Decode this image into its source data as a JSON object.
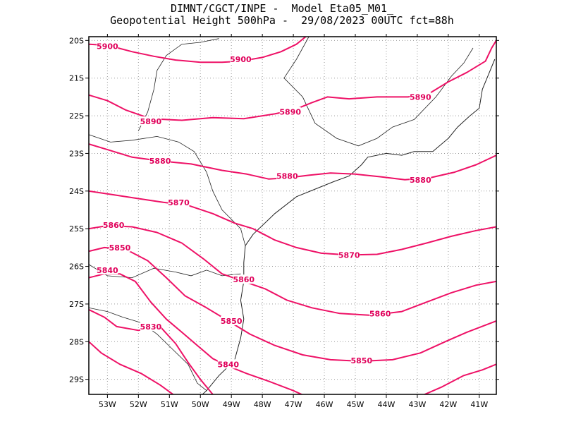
{
  "chart_data": {
    "type": "line",
    "title_line1": "DIMNT/CGCT/INPE -  Model Eta05_M01_",
    "title_line2": "Geopotential Height 500hPa -  29/08/2023 00UTC fct=88h",
    "x_axis": {
      "range": [
        -53.6,
        -40.45
      ],
      "ticks": [
        -53,
        -52,
        -51,
        -50,
        -49,
        -48,
        -47,
        -46,
        -45,
        -44,
        -43,
        -42,
        -41
      ],
      "tick_labels": [
        "53W",
        "52W",
        "51W",
        "50W",
        "49W",
        "48W",
        "47W",
        "46W",
        "45W",
        "44W",
        "43W",
        "42W",
        "41W"
      ]
    },
    "y_axis": {
      "range": [
        -29.4,
        -19.9
      ],
      "ticks": [
        -20,
        -21,
        -22,
        -23,
        -24,
        -25,
        -26,
        -27,
        -28,
        -29
      ],
      "tick_labels": [
        "20S",
        "21S",
        "22S",
        "23S",
        "24S",
        "25S",
        "26S",
        "27S",
        "28S",
        "29S"
      ]
    },
    "grid": "dotted",
    "colors": {
      "contour": "#ee1166",
      "label": "#e0005a",
      "coast": "#222222",
      "grid": "#999999"
    },
    "series": [
      {
        "name": "5900",
        "label_positions": [
          [
            -53.0,
            -20.15
          ],
          [
            -48.7,
            -20.5
          ]
        ],
        "points": [
          [
            -53.6,
            -20.1
          ],
          [
            -53.2,
            -20.12
          ],
          [
            -52.8,
            -20.17
          ],
          [
            -52.2,
            -20.3
          ],
          [
            -51.5,
            -20.42
          ],
          [
            -50.8,
            -20.52
          ],
          [
            -50.0,
            -20.58
          ],
          [
            -49.3,
            -20.58
          ],
          [
            -48.7,
            -20.55
          ],
          [
            -48.0,
            -20.45
          ],
          [
            -47.4,
            -20.3
          ],
          [
            -46.9,
            -20.1
          ],
          [
            -46.6,
            -19.9
          ]
        ]
      },
      {
        "name": "5890",
        "label_positions": [
          [
            -51.6,
            -22.15
          ],
          [
            -47.1,
            -21.9
          ],
          [
            -42.9,
            -21.5
          ]
        ],
        "points": [
          [
            -53.6,
            -21.45
          ],
          [
            -53.0,
            -21.6
          ],
          [
            -52.4,
            -21.85
          ],
          [
            -51.6,
            -22.08
          ],
          [
            -50.6,
            -22.12
          ],
          [
            -49.6,
            -22.05
          ],
          [
            -48.6,
            -22.08
          ],
          [
            -47.6,
            -21.95
          ],
          [
            -47.0,
            -21.85
          ],
          [
            -46.4,
            -21.65
          ],
          [
            -45.9,
            -21.5
          ],
          [
            -45.2,
            -21.55
          ],
          [
            -44.3,
            -21.5
          ],
          [
            -43.3,
            -21.5
          ],
          [
            -42.6,
            -21.4
          ],
          [
            -42.0,
            -21.1
          ],
          [
            -41.4,
            -20.85
          ],
          [
            -40.8,
            -20.55
          ],
          [
            -40.6,
            -20.2
          ],
          [
            -40.45,
            -20.0
          ]
        ]
      },
      {
        "name": "5880",
        "label_positions": [
          [
            -51.3,
            -23.2
          ],
          [
            -47.2,
            -23.6
          ],
          [
            -42.9,
            -23.7
          ]
        ],
        "points": [
          [
            -53.6,
            -22.75
          ],
          [
            -53.0,
            -22.9
          ],
          [
            -52.2,
            -23.1
          ],
          [
            -51.3,
            -23.2
          ],
          [
            -50.3,
            -23.28
          ],
          [
            -49.3,
            -23.45
          ],
          [
            -48.5,
            -23.55
          ],
          [
            -47.8,
            -23.68
          ],
          [
            -47.2,
            -23.65
          ],
          [
            -46.5,
            -23.58
          ],
          [
            -45.8,
            -23.52
          ],
          [
            -45.0,
            -23.55
          ],
          [
            -44.2,
            -23.62
          ],
          [
            -43.4,
            -23.7
          ],
          [
            -42.6,
            -23.65
          ],
          [
            -41.8,
            -23.5
          ],
          [
            -41.1,
            -23.3
          ],
          [
            -40.45,
            -23.05
          ]
        ]
      },
      {
        "name": "5870",
        "label_positions": [
          [
            -50.7,
            -24.3
          ],
          [
            -45.2,
            -25.7
          ]
        ],
        "points": [
          [
            -53.6,
            -24.0
          ],
          [
            -52.8,
            -24.1
          ],
          [
            -52.0,
            -24.2
          ],
          [
            -51.2,
            -24.3
          ],
          [
            -50.4,
            -24.38
          ],
          [
            -49.6,
            -24.6
          ],
          [
            -48.9,
            -24.85
          ],
          [
            -48.3,
            -25.0
          ],
          [
            -47.6,
            -25.3
          ],
          [
            -46.9,
            -25.5
          ],
          [
            -46.1,
            -25.65
          ],
          [
            -45.2,
            -25.7
          ],
          [
            -44.3,
            -25.68
          ],
          [
            -43.5,
            -25.55
          ],
          [
            -42.7,
            -25.38
          ],
          [
            -41.9,
            -25.2
          ],
          [
            -41.1,
            -25.05
          ],
          [
            -40.45,
            -24.95
          ]
        ]
      },
      {
        "name": "5860",
        "label_positions": [
          [
            -52.8,
            -24.9
          ],
          [
            -48.6,
            -26.35
          ],
          [
            -44.2,
            -27.25
          ]
        ],
        "points": [
          [
            -53.6,
            -25.0
          ],
          [
            -53.0,
            -24.92
          ],
          [
            -52.2,
            -24.95
          ],
          [
            -51.4,
            -25.1
          ],
          [
            -50.6,
            -25.38
          ],
          [
            -49.9,
            -25.8
          ],
          [
            -49.3,
            -26.2
          ],
          [
            -48.6,
            -26.4
          ],
          [
            -47.9,
            -26.6
          ],
          [
            -47.2,
            -26.9
          ],
          [
            -46.4,
            -27.1
          ],
          [
            -45.5,
            -27.25
          ],
          [
            -44.5,
            -27.3
          ],
          [
            -43.5,
            -27.2
          ],
          [
            -42.7,
            -26.95
          ],
          [
            -41.9,
            -26.7
          ],
          [
            -41.1,
            -26.5
          ],
          [
            -40.45,
            -26.4
          ]
        ]
      },
      {
        "name": "5850",
        "label_positions": [
          [
            -52.6,
            -25.5
          ],
          [
            -49.0,
            -27.45
          ],
          [
            -44.8,
            -28.5
          ]
        ],
        "points": [
          [
            -53.6,
            -25.6
          ],
          [
            -53.1,
            -25.5
          ],
          [
            -52.4,
            -25.55
          ],
          [
            -51.7,
            -25.85
          ],
          [
            -51.1,
            -26.3
          ],
          [
            -50.5,
            -26.78
          ],
          [
            -49.8,
            -27.1
          ],
          [
            -49.1,
            -27.45
          ],
          [
            -48.4,
            -27.8
          ],
          [
            -47.6,
            -28.1
          ],
          [
            -46.7,
            -28.35
          ],
          [
            -45.8,
            -28.48
          ],
          [
            -44.8,
            -28.52
          ],
          [
            -43.8,
            -28.48
          ],
          [
            -42.9,
            -28.3
          ],
          [
            -42.1,
            -28.0
          ],
          [
            -41.4,
            -27.75
          ],
          [
            -40.45,
            -27.45
          ]
        ]
      },
      {
        "name": "5840",
        "label_positions": [
          [
            -53.0,
            -26.1
          ],
          [
            -49.1,
            -28.6
          ]
        ],
        "points": [
          [
            -53.6,
            -26.3
          ],
          [
            -53.1,
            -26.2
          ],
          [
            -52.6,
            -26.2
          ],
          [
            -52.1,
            -26.4
          ],
          [
            -51.6,
            -26.95
          ],
          [
            -51.1,
            -27.4
          ],
          [
            -50.6,
            -27.75
          ],
          [
            -50.1,
            -28.1
          ],
          [
            -49.6,
            -28.45
          ],
          [
            -49.1,
            -28.65
          ],
          [
            -48.5,
            -28.85
          ],
          [
            -47.8,
            -29.05
          ],
          [
            -47.0,
            -29.3
          ],
          [
            -46.6,
            -29.45
          ]
        ]
      },
      {
        "name": "5840b",
        "label_positions": [],
        "points": [
          [
            -42.9,
            -29.45
          ],
          [
            -42.2,
            -29.2
          ],
          [
            -41.5,
            -28.9
          ],
          [
            -40.9,
            -28.75
          ],
          [
            -40.45,
            -28.6
          ]
        ]
      },
      {
        "name": "5830",
        "label_positions": [
          [
            -51.6,
            -27.6
          ]
        ],
        "points": [
          [
            -53.6,
            -27.15
          ],
          [
            -53.1,
            -27.35
          ],
          [
            -52.7,
            -27.6
          ],
          [
            -52.0,
            -27.7
          ],
          [
            -51.3,
            -27.6
          ],
          [
            -50.8,
            -28.05
          ],
          [
            -50.4,
            -28.55
          ],
          [
            -50.0,
            -29.0
          ],
          [
            -49.6,
            -29.4
          ]
        ]
      },
      {
        "name": "5830b",
        "label_positions": [],
        "points": [
          [
            -53.6,
            -28.0
          ],
          [
            -53.2,
            -28.3
          ],
          [
            -52.6,
            -28.6
          ],
          [
            -51.9,
            -28.85
          ],
          [
            -51.3,
            -29.15
          ],
          [
            -50.8,
            -29.45
          ]
        ]
      }
    ],
    "coastlines": [
      [
        [
          -48.55,
          -25.45
        ],
        [
          -48.3,
          -25.15
        ],
        [
          -47.6,
          -24.6
        ],
        [
          -46.9,
          -24.15
        ],
        [
          -46.3,
          -23.95
        ],
        [
          -45.7,
          -23.75
        ],
        [
          -45.2,
          -23.6
        ],
        [
          -44.8,
          -23.3
        ],
        [
          -44.6,
          -23.1
        ],
        [
          -44.0,
          -23.0
        ],
        [
          -43.5,
          -23.05
        ],
        [
          -43.1,
          -22.95
        ],
        [
          -42.5,
          -22.95
        ],
        [
          -42.0,
          -22.6
        ],
        [
          -41.7,
          -22.3
        ],
        [
          -41.3,
          -22.0
        ],
        [
          -41.0,
          -21.8
        ],
        [
          -40.9,
          -21.3
        ],
        [
          -40.7,
          -20.9
        ],
        [
          -40.5,
          -20.5
        ]
      ],
      [
        [
          -48.55,
          -25.45
        ],
        [
          -48.6,
          -25.9
        ],
        [
          -48.6,
          -26.4
        ],
        [
          -48.7,
          -26.9
        ],
        [
          -48.6,
          -27.4
        ],
        [
          -48.7,
          -27.9
        ],
        [
          -48.9,
          -28.5
        ],
        [
          -49.4,
          -28.9
        ],
        [
          -49.8,
          -29.3
        ],
        [
          -50.0,
          -29.45
        ]
      ]
    ],
    "borders": [
      [
        [
          -53.6,
          -22.5
        ],
        [
          -52.9,
          -22.7
        ],
        [
          -52.2,
          -22.65
        ],
        [
          -51.4,
          -22.55
        ],
        [
          -50.7,
          -22.7
        ],
        [
          -50.2,
          -22.95
        ],
        [
          -49.8,
          -23.5
        ],
        [
          -49.6,
          -24.0
        ],
        [
          -49.3,
          -24.5
        ],
        [
          -48.7,
          -25.0
        ],
        [
          -48.55,
          -25.45
        ]
      ],
      [
        [
          -53.6,
          -25.95
        ],
        [
          -53.0,
          -26.25
        ],
        [
          -52.2,
          -26.3
        ],
        [
          -51.5,
          -26.05
        ],
        [
          -50.8,
          -26.15
        ],
        [
          -50.3,
          -26.25
        ],
        [
          -49.8,
          -26.1
        ],
        [
          -49.3,
          -26.25
        ],
        [
          -48.7,
          -26.2
        ]
      ],
      [
        [
          -53.6,
          -27.1
        ],
        [
          -53.0,
          -27.2
        ],
        [
          -52.5,
          -27.35
        ],
        [
          -51.9,
          -27.5
        ],
        [
          -51.4,
          -27.8
        ],
        [
          -50.9,
          -28.2
        ],
        [
          -50.4,
          -28.6
        ],
        [
          -50.1,
          -29.1
        ],
        [
          -49.8,
          -29.3
        ]
      ],
      [
        [
          -52.0,
          -22.4
        ],
        [
          -51.7,
          -21.9
        ],
        [
          -51.5,
          -21.3
        ],
        [
          -51.4,
          -20.8
        ],
        [
          -51.1,
          -20.4
        ],
        [
          -50.6,
          -20.1
        ],
        [
          -50.0,
          -20.05
        ],
        [
          -49.4,
          -19.95
        ]
      ],
      [
        [
          -46.5,
          -19.9
        ],
        [
          -46.9,
          -20.5
        ],
        [
          -47.3,
          -21.0
        ],
        [
          -46.7,
          -21.5
        ],
        [
          -46.3,
          -22.2
        ],
        [
          -45.6,
          -22.6
        ],
        [
          -44.9,
          -22.8
        ],
        [
          -44.3,
          -22.6
        ],
        [
          -43.8,
          -22.3
        ],
        [
          -43.1,
          -22.1
        ],
        [
          -42.4,
          -21.5
        ],
        [
          -41.9,
          -20.95
        ],
        [
          -41.5,
          -20.6
        ],
        [
          -41.2,
          -20.2
        ]
      ]
    ]
  }
}
